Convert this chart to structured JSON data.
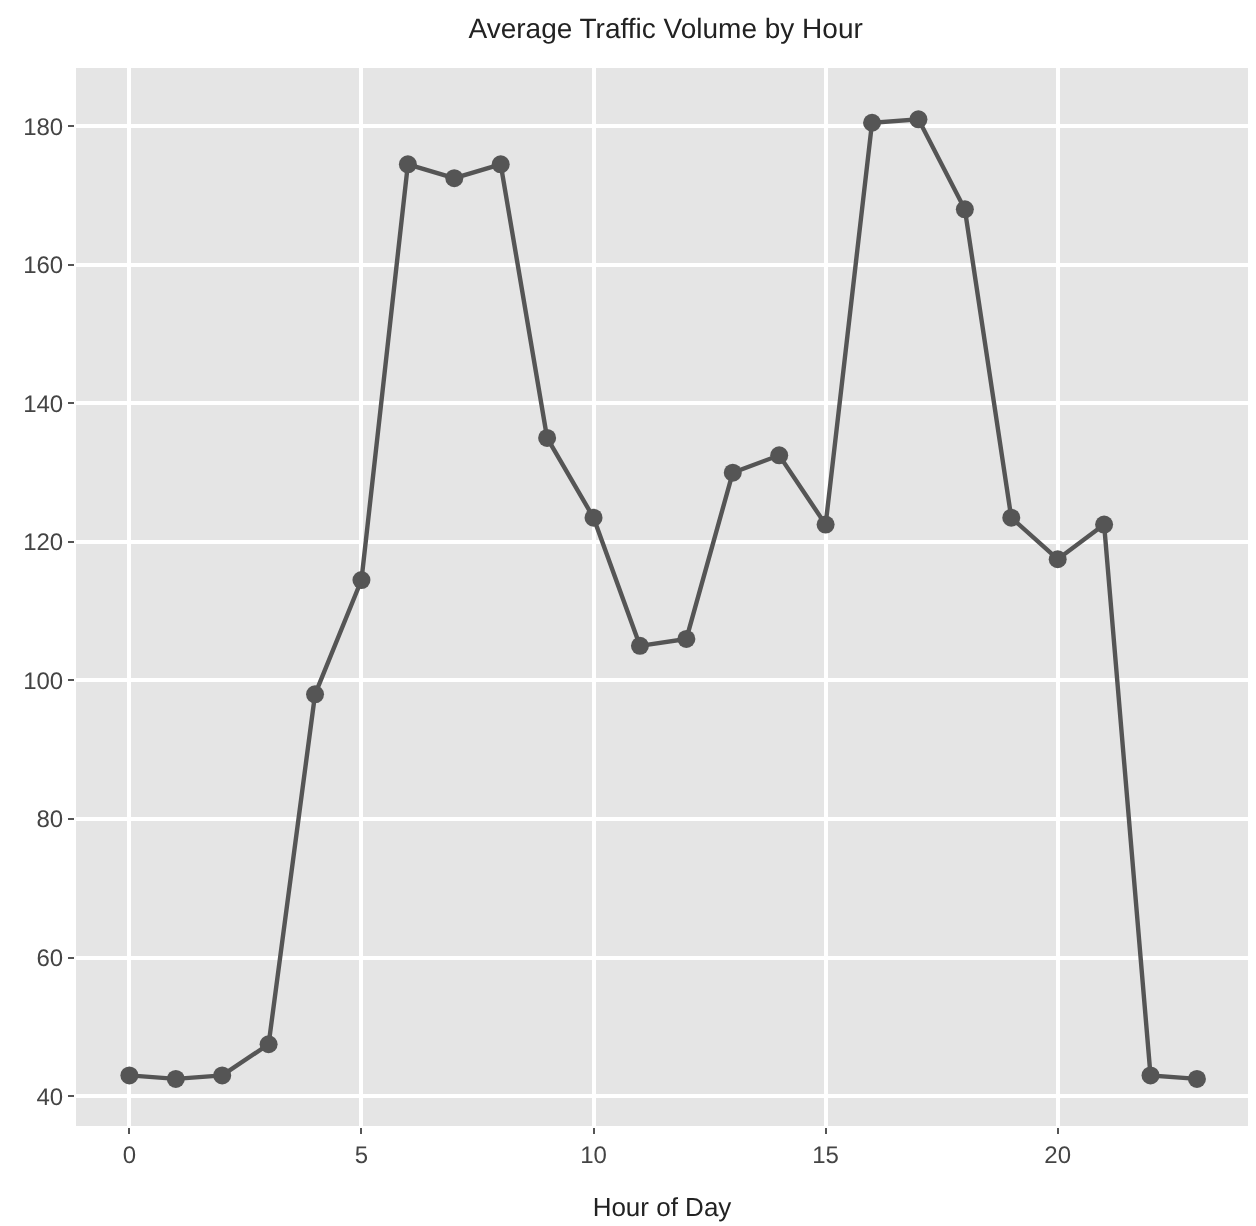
{
  "chart_data": {
    "type": "line",
    "title": "Average Traffic Volume by Hour",
    "xlabel": "Hour of Day",
    "x": [
      0,
      1,
      2,
      3,
      4,
      5,
      6,
      7,
      8,
      9,
      10,
      11,
      12,
      13,
      14,
      15,
      16,
      17,
      18,
      19,
      20,
      21,
      22,
      23
    ],
    "series": [
      {
        "color": "#555555",
        "values": [
          43,
          42.5,
          43,
          47.5,
          98,
          114.5,
          174.5,
          172.5,
          174.5,
          135,
          123.5,
          105,
          106,
          130,
          132.5,
          122.5,
          180.5,
          181,
          168,
          123.5,
          117.5,
          122.5,
          43,
          42.5
        ]
      }
    ],
    "xlim": [
      -1.15,
      24.1
    ],
    "xticks": [
      0,
      5,
      10,
      15,
      20
    ],
    "ylim": [
      35.7,
      188.4
    ],
    "yticks": [
      40,
      60,
      80,
      100,
      120,
      140,
      160,
      180
    ],
    "grid": true,
    "marker": "circle",
    "line_style": "solid"
  }
}
